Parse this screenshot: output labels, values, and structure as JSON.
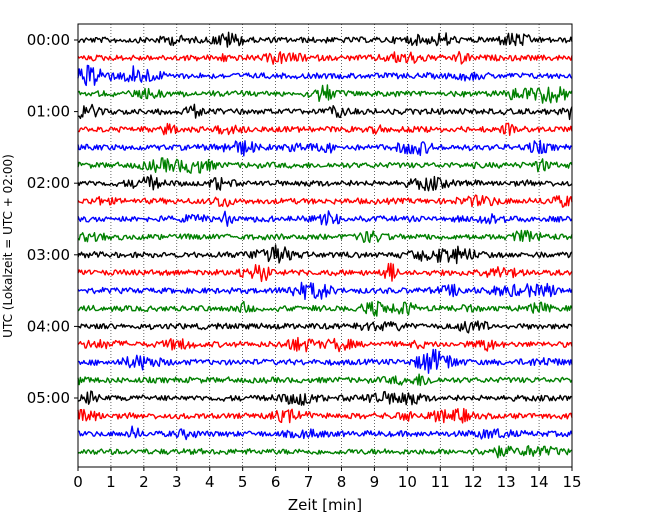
{
  "chart_data": {
    "type": "line",
    "title": "",
    "xlabel": "Zeit  [min]",
    "ylabel": "UTC (Lokalzeit = UTC + 02:00)",
    "x_range": [
      0,
      15
    ],
    "x_ticks": [
      "0",
      "1",
      "2",
      "3",
      "4",
      "5",
      "6",
      "7",
      "8",
      "9",
      "10",
      "11",
      "12",
      "13",
      "14",
      "15"
    ],
    "y_ticks": [
      "00:00",
      "01:00",
      "02:00",
      "03:00",
      "04:00",
      "05:00"
    ],
    "row_interval_min": 15,
    "grid": "vertical dotted at each minute",
    "trace_colors": [
      "#000000",
      "#ff0000",
      "#0000ff",
      "#008000"
    ],
    "rows": [
      {
        "start": "00:00",
        "color": "#000000"
      },
      {
        "start": "00:15",
        "color": "#ff0000"
      },
      {
        "start": "00:30",
        "color": "#0000ff"
      },
      {
        "start": "00:45",
        "color": "#008000"
      },
      {
        "start": "01:00",
        "color": "#000000"
      },
      {
        "start": "01:15",
        "color": "#ff0000"
      },
      {
        "start": "01:30",
        "color": "#0000ff"
      },
      {
        "start": "01:45",
        "color": "#008000"
      },
      {
        "start": "02:00",
        "color": "#000000"
      },
      {
        "start": "02:15",
        "color": "#ff0000"
      },
      {
        "start": "02:30",
        "color": "#0000ff"
      },
      {
        "start": "02:45",
        "color": "#008000"
      },
      {
        "start": "03:00",
        "color": "#000000"
      },
      {
        "start": "03:15",
        "color": "#ff0000"
      },
      {
        "start": "03:30",
        "color": "#0000ff"
      },
      {
        "start": "03:45",
        "color": "#008000"
      },
      {
        "start": "04:00",
        "color": "#000000"
      },
      {
        "start": "04:15",
        "color": "#ff0000"
      },
      {
        "start": "04:30",
        "color": "#0000ff"
      },
      {
        "start": "04:45",
        "color": "#008000"
      },
      {
        "start": "05:00",
        "color": "#000000"
      },
      {
        "start": "05:15",
        "color": "#ff0000"
      },
      {
        "start": "05:30",
        "color": "#0000ff"
      },
      {
        "start": "05:45",
        "color": "#008000"
      }
    ]
  }
}
